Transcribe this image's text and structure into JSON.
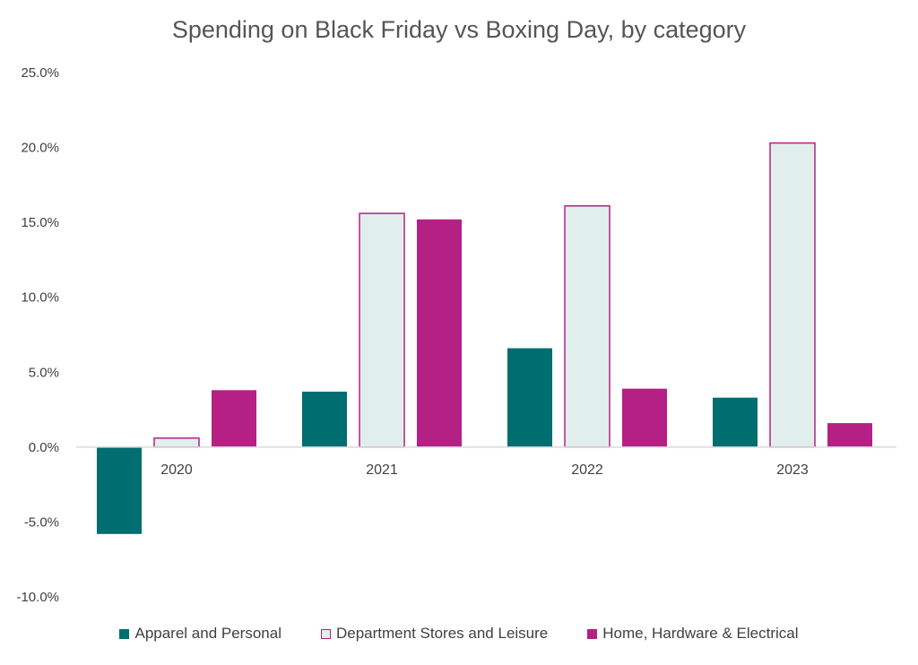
{
  "chart_data": {
    "type": "bar",
    "title": "Spending on Black Friday vs Boxing Day, by category",
    "xlabel": "",
    "ylabel": "",
    "categories": [
      "2020",
      "2021",
      "2022",
      "2023"
    ],
    "series": [
      {
        "name": "Apparel and Personal",
        "values": [
          -5.8,
          3.7,
          6.6,
          3.3
        ],
        "fill": "#006d70",
        "stroke": "#006d70"
      },
      {
        "name": "Department Stores and Leisure",
        "values": [
          0.6,
          15.6,
          16.1,
          20.3
        ],
        "fill": "#e0eeec",
        "stroke": "#b52085"
      },
      {
        "name": "Home, Hardware & Electrical",
        "values": [
          3.8,
          15.2,
          3.9,
          1.6
        ],
        "fill": "#b52085",
        "stroke": "#b52085"
      }
    ],
    "ylim": [
      -10,
      25
    ],
    "yticks": [
      -10,
      -5,
      0,
      5,
      10,
      15,
      20,
      25
    ],
    "ytick_labels": [
      "-10.0%",
      "-5.0%",
      "0.0%",
      "5.0%",
      "10.0%",
      "15.0%",
      "20.0%",
      "25.0%"
    ],
    "grid": false,
    "legend_position": "bottom"
  }
}
